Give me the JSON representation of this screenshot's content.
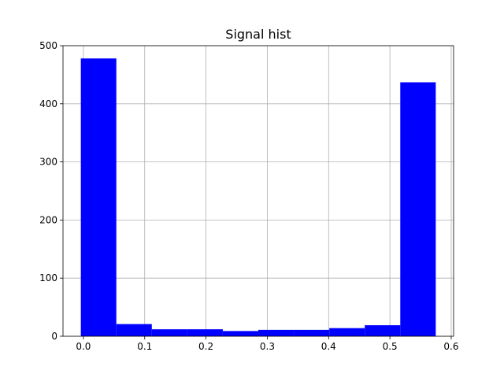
{
  "chart_data": {
    "type": "bar",
    "title": "Signal hist",
    "xlabel": "",
    "ylabel": "",
    "bins": [
      {
        "x0": -0.0042,
        "x1": 0.0537,
        "count": 478
      },
      {
        "x0": 0.0537,
        "x1": 0.1116,
        "count": 21
      },
      {
        "x0": 0.1116,
        "x1": 0.1695,
        "count": 12
      },
      {
        "x0": 0.1695,
        "x1": 0.2274,
        "count": 12
      },
      {
        "x0": 0.2274,
        "x1": 0.2853,
        "count": 9
      },
      {
        "x0": 0.2853,
        "x1": 0.3432,
        "count": 11
      },
      {
        "x0": 0.3432,
        "x1": 0.4011,
        "count": 11
      },
      {
        "x0": 0.4011,
        "x1": 0.459,
        "count": 14
      },
      {
        "x0": 0.459,
        "x1": 0.5169,
        "count": 19
      },
      {
        "x0": 0.5169,
        "x1": 0.5748,
        "count": 437
      }
    ],
    "xlim": [
      -0.0333,
      0.6039
    ],
    "ylim": [
      0,
      500
    ],
    "xticks": [
      0.0,
      0.1,
      0.2,
      0.3,
      0.4,
      0.5,
      0.6
    ],
    "xtick_labels": [
      "0.0",
      "0.1",
      "0.2",
      "0.3",
      "0.4",
      "0.5",
      "0.6"
    ],
    "yticks": [
      0,
      100,
      200,
      300,
      400,
      500
    ],
    "ytick_labels": [
      "0",
      "100",
      "200",
      "300",
      "400",
      "500"
    ],
    "grid": true,
    "bar_color": "#0000ff"
  }
}
